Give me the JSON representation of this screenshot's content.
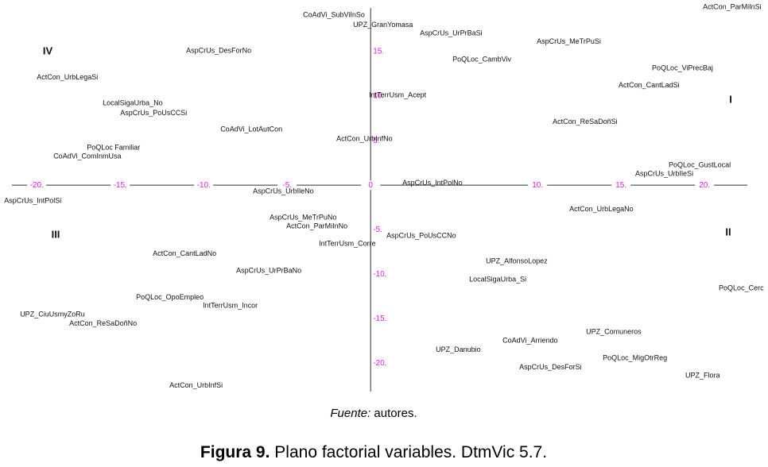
{
  "chart_data": {
    "type": "scatter",
    "xlim": [
      -22.2,
      23.8
    ],
    "ylim": [
      -23.8,
      20.8
    ],
    "xticks": [
      {
        "value": -20,
        "label": "-20."
      },
      {
        "value": -15,
        "label": "-15."
      },
      {
        "value": -10,
        "label": "-10."
      },
      {
        "value": -5,
        "label": "-5."
      },
      0,
      {
        "value": 10,
        "label": "10."
      },
      {
        "value": 15,
        "label": "15."
      },
      {
        "value": 20,
        "label": "20."
      }
    ],
    "yticks": [
      {
        "value": 15,
        "label": "15."
      },
      {
        "value": 10,
        "label": "10."
      },
      {
        "value": 5,
        "label": "5."
      },
      {
        "value": -5,
        "label": "-5."
      },
      {
        "value": -10,
        "label": "-10."
      },
      {
        "value": -15,
        "label": "-15."
      },
      {
        "value": -20,
        "label": "-20."
      }
    ],
    "tick_color": "#e020e0",
    "quadrant_labels": [
      "I",
      "II",
      "III",
      "IV"
    ],
    "labels": [
      "CoAdVi_SubViInSo",
      "UPZ_GranYomasa",
      "AspCrUs_UrPrBaSi",
      "ActCon_ParMiInSi",
      "AspCrUs_MeTrPuSi",
      "AspCrUs_DesForNo",
      "PoQLoc_CambViv",
      "PoQLoc_ViPrecBaj",
      "ActCon_UrbLegaSi",
      "ActCon_CantLadSi",
      "IntTerrUsm_Acept",
      "LocalSigaUrba_No",
      "AspCrUs_PoUsCCSi",
      "ActCon_ReSaDoñSi",
      "CoAdVi_LotAutCon",
      "ActCon_UrbInfNo",
      "PoQLoc Familiar",
      "CoAdVi_ComInmUsa",
      "PoQLoc_GustLocal",
      "AspCrUs_UrbIleSi",
      "AspCrUs_IntPolNo",
      "AspCrUs_UrbIleNo",
      "AspCrUs_IntPolSi",
      "ActCon_UrbLegaNo",
      "AspCrUs_MeTrPuNo",
      "ActCon_ParMiInNo",
      "AspCrUs_PoUsCCNo",
      "IntTerrUsm_Corre",
      "ActCon_CantLadNo",
      "UPZ_AlfonsoLopez",
      "AspCrUs_UrPrBaNo",
      "LocalSigaUrba_Si",
      "PoQLoc_Cerc",
      "PoQLoc_OpoEmpleo",
      "IntTerrUsm_Incor",
      "UPZ_CiuUsmyZoRu",
      "ActCon_ReSaDoñNo",
      "UPZ_Comuneros",
      "CoAdVi_Arriendo",
      "UPZ_Danubio",
      "PoQLoc_MigOtrReg",
      "AspCrUs_DesForSi",
      "UPZ_Flora",
      "ActCon_UrbInfSi"
    ],
    "x": [
      -4.05,
      -1.05,
      2.95,
      19.9,
      9.95,
      -11.05,
      4.9,
      16.85,
      -20.0,
      14.85,
      -0.1,
      -16.05,
      -15.0,
      10.9,
      -9.0,
      -2.05,
      -17.0,
      -19.0,
      17.85,
      15.85,
      1.9,
      -7.05,
      -21.95,
      11.9,
      -6.05,
      -5.05,
      0.95,
      -3.1,
      -13.05,
      6.9,
      -8.05,
      5.9,
      20.85,
      -14.05,
      -10.05,
      -21.0,
      -18.05,
      12.9,
      7.9,
      3.9,
      13.9,
      8.9,
      18.85,
      -12.05
    ],
    "values": [
      19.1,
      18.0,
      17.05,
      20.0,
      16.1,
      15.1,
      14.1,
      13.1,
      12.1,
      11.2,
      10.1,
      9.2,
      8.1,
      7.1,
      6.25,
      5.2,
      4.2,
      3.2,
      2.25,
      1.25,
      0.25,
      -0.7,
      -1.8,
      -2.7,
      -3.65,
      -4.65,
      -5.7,
      -6.6,
      -7.7,
      -8.55,
      -9.65,
      -10.6,
      -11.6,
      -12.6,
      -13.55,
      -14.55,
      -15.55,
      -16.5,
      -17.5,
      -18.5,
      -19.45,
      -20.45,
      -21.4,
      -22.5
    ]
  },
  "source_label": "Fuente:",
  "source_text": "autores.",
  "caption_label": "Figura 9.",
  "caption_text": "Plano factorial variables. DtmVic 5.7."
}
